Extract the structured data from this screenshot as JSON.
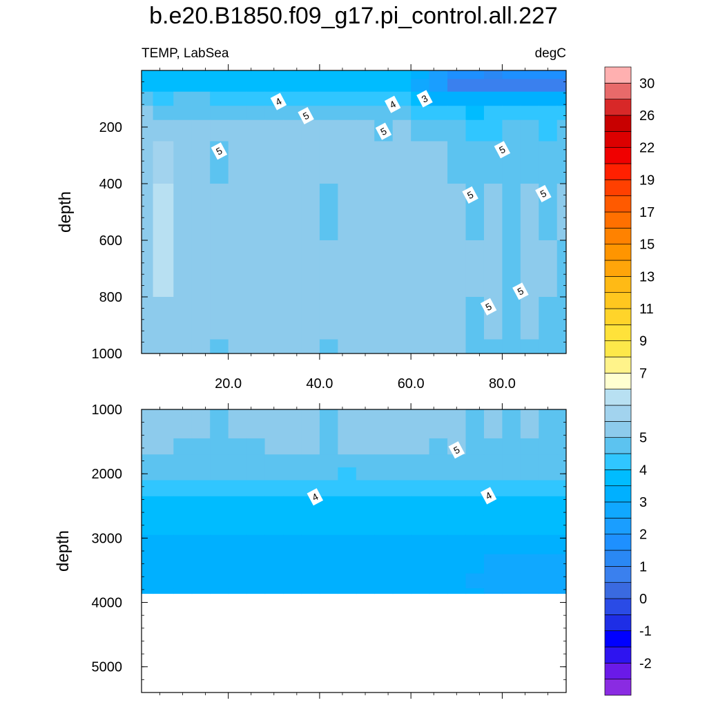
{
  "title": "b.e20.B1850.f09_g17.pi_control.all.227",
  "subtitle_left": "TEMP, LabSea",
  "subtitle_right": "degC",
  "chart_data": [
    {
      "type": "heatmap",
      "panel": "upper",
      "variable": "TEMP",
      "region": "LabSea",
      "units": "degC",
      "ylabel": "depth",
      "xlabel": "",
      "xlim": [
        1,
        94
      ],
      "ylim": [
        1000,
        0
      ],
      "x_ticks": [
        20,
        40,
        60,
        80
      ],
      "x_tick_labels": [
        "20.0",
        "40.0",
        "60.0",
        "80.0"
      ],
      "y_ticks": [
        200,
        400,
        600,
        800,
        1000
      ],
      "y_tick_labels": [
        "200",
        "400",
        "600",
        "800",
        "1000"
      ],
      "x": [
        1,
        6,
        10,
        14,
        18,
        22,
        26,
        30,
        34,
        38,
        42,
        46,
        50,
        54,
        58,
        62,
        66,
        70,
        74,
        78,
        82,
        86,
        90,
        94
      ],
      "depth": [
        10,
        50,
        100,
        150,
        200,
        300,
        500,
        700,
        900,
        1000
      ],
      "values": [
        [
          3.8,
          3.7,
          3.8,
          3.8,
          3.7,
          3.8,
          3.7,
          3.8,
          3.8,
          3.7,
          3.8,
          3.8,
          3.7,
          3.8,
          3.8,
          3.2,
          2.4,
          1.6,
          1.5,
          1.4,
          1.5,
          1.6,
          1.5,
          1.6
        ],
        [
          3.7,
          3.6,
          3.7,
          3.7,
          3.6,
          3.6,
          3.6,
          3.7,
          3.7,
          3.6,
          3.7,
          3.6,
          3.6,
          3.7,
          3.6,
          2.8,
          2.0,
          0.8,
          0.6,
          0.5,
          0.6,
          0.7,
          0.6,
          0.8
        ],
        [
          4.6,
          4.4,
          4.5,
          4.6,
          4.3,
          4.2,
          4.2,
          4.0,
          4.1,
          4.3,
          4.2,
          4.3,
          4.1,
          4.2,
          4.0,
          3.6,
          3.2,
          3.1,
          3.0,
          3.0,
          3.1,
          3.2,
          3.1,
          3.2
        ],
        [
          5.0,
          4.9,
          4.8,
          4.8,
          4.7,
          4.6,
          4.7,
          4.6,
          4.7,
          4.5,
          4.7,
          4.6,
          4.6,
          4.5,
          4.6,
          4.3,
          4.1,
          4.0,
          3.9,
          4.0,
          4.1,
          4.1,
          4.0,
          4.1
        ],
        [
          5.2,
          5.1,
          5.1,
          5.1,
          5.0,
          5.1,
          5.1,
          5.1,
          5.1,
          5.0,
          5.1,
          5.0,
          5.0,
          4.9,
          5.0,
          4.8,
          4.6,
          4.5,
          4.4,
          4.4,
          4.5,
          4.5,
          4.4,
          4.5
        ],
        [
          5.4,
          5.7,
          5.4,
          5.3,
          4.9,
          5.3,
          5.3,
          5.3,
          5.3,
          5.2,
          5.1,
          5.2,
          5.3,
          5.2,
          5.3,
          5.2,
          5.0,
          4.9,
          4.8,
          4.9,
          4.9,
          4.9,
          4.9,
          4.8
        ],
        [
          5.4,
          6.2,
          5.4,
          5.3,
          5.3,
          5.3,
          5.3,
          5.3,
          5.3,
          5.3,
          4.9,
          5.3,
          5.3,
          5.3,
          5.3,
          5.2,
          5.2,
          5.1,
          4.9,
          5.0,
          4.9,
          5.1,
          4.9,
          5.0
        ],
        [
          5.3,
          6.0,
          5.3,
          5.3,
          5.3,
          5.3,
          5.3,
          5.3,
          5.3,
          5.3,
          5.1,
          5.3,
          5.3,
          5.3,
          5.3,
          5.3,
          5.2,
          5.2,
          5.0,
          5.1,
          4.9,
          5.1,
          5.0,
          4.9
        ],
        [
          5.2,
          5.3,
          5.2,
          5.2,
          5.0,
          5.2,
          5.2,
          5.2,
          5.2,
          5.2,
          5.0,
          5.2,
          5.2,
          5.2,
          5.2,
          5.2,
          5.1,
          5.1,
          4.9,
          5.0,
          4.9,
          5.0,
          4.9,
          4.9
        ],
        [
          5.1,
          5.2,
          5.2,
          5.2,
          4.9,
          5.2,
          5.2,
          5.2,
          5.2,
          5.2,
          4.9,
          5.2,
          5.2,
          5.2,
          5.2,
          5.2,
          5.1,
          5.1,
          4.9,
          4.9,
          4.9,
          4.9,
          4.9,
          4.8
        ]
      ],
      "contour_labels": [
        {
          "text": "4",
          "x": 31,
          "depth": 110
        },
        {
          "text": "5",
          "x": 37,
          "depth": 160
        },
        {
          "text": "4",
          "x": 56,
          "depth": 120
        },
        {
          "text": "3",
          "x": 63,
          "depth": 100
        },
        {
          "text": "5",
          "x": 54,
          "depth": 215
        },
        {
          "text": "5",
          "x": 18,
          "depth": 285
        },
        {
          "text": "5",
          "x": 80,
          "depth": 280
        },
        {
          "text": "5",
          "x": 73,
          "depth": 440
        },
        {
          "text": "5",
          "x": 89,
          "depth": 435
        },
        {
          "text": "5",
          "x": 84,
          "depth": 780
        },
        {
          "text": "5",
          "x": 77,
          "depth": 835
        }
      ]
    },
    {
      "type": "heatmap",
      "panel": "lower",
      "variable": "TEMP",
      "region": "LabSea",
      "units": "degC",
      "ylabel": "depth",
      "xlabel": "",
      "xlim": [
        1,
        94
      ],
      "ylim": [
        5400,
        1000
      ],
      "y_ticks": [
        1000,
        2000,
        3000,
        4000,
        5000
      ],
      "y_tick_labels": [
        "1000",
        "2000",
        "3000",
        "4000",
        "5000"
      ],
      "ocean_bottom": 3860,
      "x": [
        1,
        6,
        10,
        14,
        18,
        22,
        26,
        30,
        34,
        38,
        42,
        46,
        50,
        54,
        58,
        62,
        66,
        70,
        74,
        78,
        82,
        86,
        90,
        94
      ],
      "depth": [
        1000,
        1300,
        1600,
        1800,
        2000,
        2200,
        2500,
        2800,
        3100,
        3400,
        3700,
        3860
      ],
      "values": [
        [
          5.3,
          5.2,
          5.2,
          5.1,
          4.9,
          5.2,
          5.2,
          5.2,
          5.2,
          5.2,
          4.9,
          5.2,
          5.2,
          5.2,
          5.2,
          5.2,
          5.1,
          5.1,
          4.9,
          5.0,
          4.9,
          5.0,
          4.9,
          4.8
        ],
        [
          5.2,
          5.2,
          5.2,
          5.1,
          4.9,
          5.1,
          5.1,
          5.1,
          5.1,
          5.1,
          4.9,
          5.1,
          5.1,
          5.1,
          5.1,
          5.1,
          5.1,
          5.1,
          4.9,
          5.0,
          4.9,
          5.0,
          4.9,
          4.8
        ],
        [
          5.1,
          5.1,
          4.9,
          4.9,
          4.8,
          4.9,
          4.9,
          5.0,
          5.0,
          5.0,
          4.9,
          5.0,
          5.0,
          5.0,
          5.0,
          5.0,
          4.9,
          5.0,
          4.9,
          4.8,
          4.8,
          4.9,
          4.8,
          4.8
        ],
        [
          4.9,
          4.8,
          4.8,
          4.8,
          4.7,
          4.7,
          4.7,
          4.8,
          4.8,
          4.8,
          4.7,
          4.7,
          4.7,
          4.7,
          4.7,
          4.7,
          4.7,
          4.7,
          4.7,
          4.9,
          4.7,
          4.7,
          4.7,
          4.7
        ],
        [
          4.6,
          4.5,
          4.6,
          4.6,
          4.5,
          4.6,
          4.6,
          4.6,
          4.6,
          4.5,
          4.6,
          4.4,
          4.6,
          4.5,
          4.6,
          4.5,
          4.6,
          4.5,
          4.6,
          4.5,
          4.6,
          4.5,
          4.5,
          4.6
        ],
        [
          4.2,
          4.2,
          4.2,
          4.2,
          4.1,
          4.2,
          4.2,
          4.2,
          4.2,
          4.1,
          4.2,
          4.1,
          4.2,
          4.2,
          4.2,
          4.2,
          4.2,
          4.2,
          4.2,
          4.2,
          4.2,
          4.2,
          4.2,
          4.2
        ],
        [
          3.9,
          3.9,
          3.9,
          3.9,
          3.9,
          3.9,
          3.9,
          3.9,
          3.9,
          3.9,
          3.9,
          3.9,
          3.9,
          3.9,
          3.9,
          3.9,
          3.9,
          3.9,
          3.9,
          3.9,
          3.9,
          3.9,
          3.9,
          3.9
        ],
        [
          3.6,
          3.6,
          3.6,
          3.6,
          3.6,
          3.6,
          3.6,
          3.6,
          3.6,
          3.6,
          3.6,
          3.6,
          3.6,
          3.6,
          3.6,
          3.6,
          3.6,
          3.6,
          3.6,
          3.6,
          3.6,
          3.6,
          3.5,
          3.5
        ],
        [
          3.4,
          3.4,
          3.4,
          3.4,
          3.4,
          3.4,
          3.4,
          3.4,
          3.4,
          3.4,
          3.4,
          3.4,
          3.4,
          3.4,
          3.4,
          3.4,
          3.4,
          3.4,
          3.3,
          3.2,
          3.1,
          3.0,
          3.0,
          3.0
        ],
        [
          3.3,
          3.3,
          3.3,
          3.3,
          3.3,
          3.3,
          3.3,
          3.3,
          3.3,
          3.3,
          3.3,
          3.3,
          3.3,
          3.3,
          3.3,
          3.3,
          3.3,
          3.3,
          3.1,
          2.9,
          2.9,
          2.9,
          2.9,
          2.9
        ],
        [
          3.2,
          3.2,
          3.2,
          3.2,
          3.2,
          3.2,
          3.2,
          3.2,
          3.2,
          3.2,
          3.2,
          3.2,
          3.2,
          3.2,
          3.2,
          3.2,
          3.2,
          3.2,
          2.9,
          2.9,
          2.9,
          2.9,
          2.9,
          2.9
        ],
        [
          3.2,
          3.2,
          3.2,
          3.2,
          3.2,
          3.2,
          3.2,
          3.2,
          3.2,
          3.2,
          3.2,
          3.2,
          3.2,
          3.2,
          3.2,
          3.2,
          3.2,
          3.2,
          3.0,
          2.9,
          2.9,
          2.9,
          2.9,
          2.9
        ]
      ],
      "contour_labels": [
        {
          "text": "5",
          "x": 70,
          "depth": 1630
        },
        {
          "text": "4",
          "x": 39,
          "depth": 2360
        },
        {
          "text": "4",
          "x": 77,
          "depth": 2340
        }
      ]
    }
  ],
  "colorbar": {
    "levels": [
      -2.5,
      -2,
      -1.5,
      -1,
      -0.5,
      0,
      0.5,
      1,
      1.5,
      2,
      2.5,
      3,
      3.5,
      4,
      4.5,
      5,
      5.5,
      6,
      6.5,
      7,
      8,
      9,
      10,
      11,
      12,
      13,
      14,
      15,
      16,
      17,
      18,
      19,
      20,
      22,
      24,
      26,
      28,
      30,
      32
    ],
    "colors": [
      "#8a2be2",
      "#6a1ae8",
      "#2e14f0",
      "#0000ff",
      "#1e2ee6",
      "#2a4be6",
      "#3a6ae0",
      "#3a80ee",
      "#2a88f4",
      "#1e90ff",
      "#1a9eff",
      "#10a8ff",
      "#00b0ff",
      "#00bcff",
      "#30c6ff",
      "#5cc3f0",
      "#8dcbec",
      "#a2d3ee",
      "#b8e0f2",
      "#ffffd0",
      "#fff38a",
      "#fde84a",
      "#ffe23a",
      "#ffd42a",
      "#ffc71f",
      "#ffba15",
      "#ffa50a",
      "#ff9500",
      "#ff8200",
      "#ff7000",
      "#ff5a00",
      "#ff4000",
      "#ff2000",
      "#f00000",
      "#dc0000",
      "#c80000",
      "#d82828",
      "#e86a6a",
      "#ffb0b0"
    ],
    "label_values": [
      "-2",
      "-1",
      "0",
      "1",
      "2",
      "3",
      "4",
      "5",
      "7",
      "9",
      "11",
      "13",
      "15",
      "17",
      "19",
      "22",
      "26",
      "30"
    ]
  }
}
